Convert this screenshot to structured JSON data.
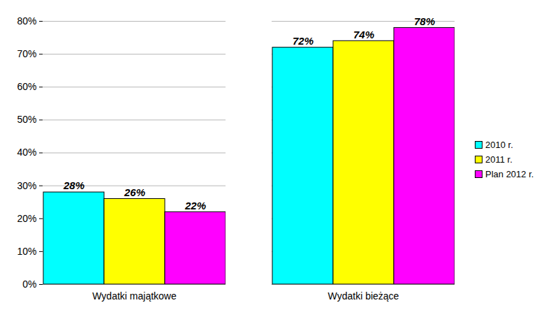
{
  "chart_data": {
    "type": "bar",
    "categories": [
      "Wydatki majątkowe",
      "Wydatki bieżące"
    ],
    "series": [
      {
        "name": "2010 r.",
        "color": "#00FFFF",
        "values": [
          28,
          72
        ],
        "value_labels": [
          "28%",
          "72%"
        ]
      },
      {
        "name": "2011 r.",
        "color": "#FFFF00",
        "values": [
          26,
          74
        ],
        "value_labels": [
          "26%",
          "74%"
        ]
      },
      {
        "name": "Plan 2012 r.",
        "color": "#FF00FF",
        "values": [
          22,
          78
        ],
        "value_labels": [
          "22%",
          "78%"
        ]
      }
    ],
    "ylim": [
      0,
      80
    ],
    "yticks": [
      {
        "value": 0,
        "label": "0%"
      },
      {
        "value": 10,
        "label": "10%"
      },
      {
        "value": 20,
        "label": "20%"
      },
      {
        "value": 30,
        "label": "30%"
      },
      {
        "value": 40,
        "label": "40%"
      },
      {
        "value": 50,
        "label": "50%"
      },
      {
        "value": 60,
        "label": "60%"
      },
      {
        "value": 70,
        "label": "70%"
      },
      {
        "value": 80,
        "label": "80%"
      }
    ],
    "grid": true,
    "legend": "right",
    "data_labels": true
  }
}
